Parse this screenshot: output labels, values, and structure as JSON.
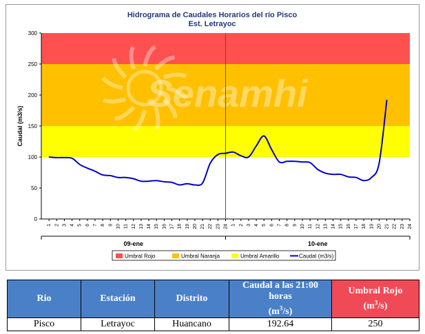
{
  "chart_data": {
    "type": "line",
    "title": "Hidrograma de Caudales Horarios del río Pisco",
    "subtitle": "Est. Letrayoc",
    "ylabel": "Caudal  (m3/s)",
    "ylim": [
      0,
      300
    ],
    "yticks": [
      0,
      50,
      100,
      150,
      200,
      250,
      300
    ],
    "x_tick_labels": [
      "1",
      "2",
      "3",
      "4",
      "5",
      "6",
      "7",
      "8",
      "9",
      "10",
      "11",
      "12",
      "13",
      "14",
      "15",
      "16",
      "17",
      "18",
      "19",
      "20",
      "21",
      "22",
      "23",
      "24",
      "1",
      "2",
      "3",
      "4",
      "5",
      "6",
      "7",
      "8",
      "9",
      "10",
      "11",
      "12",
      "13",
      "14",
      "15",
      "16",
      "17",
      "18",
      "19",
      "20",
      "21",
      "22",
      "23",
      "24"
    ],
    "days": [
      "09-ene",
      "10-ene"
    ],
    "thresholds": [
      {
        "name": "Umbral Rojo",
        "from": 250,
        "to": 300,
        "color": "#ff5050"
      },
      {
        "name": "Umbral Naranja",
        "from": 150,
        "to": 250,
        "color": "#ffc000"
      },
      {
        "name": "Umbral Amarillo",
        "from": 100,
        "to": 150,
        "color": "#ffff00"
      }
    ],
    "series": [
      {
        "name": "Caudal (m3/s)",
        "color": "#0000cc",
        "x": [
          1,
          2,
          3,
          4,
          5,
          6,
          7,
          8,
          9,
          10,
          11,
          12,
          13,
          14,
          15,
          16,
          17,
          18,
          19,
          20,
          21,
          22,
          23,
          24,
          25,
          26,
          27,
          28,
          29,
          30,
          31,
          32,
          33,
          34,
          35,
          36,
          37,
          38,
          39,
          40,
          41,
          42,
          43,
          44,
          45
        ],
        "values": [
          100,
          99,
          99,
          98,
          88,
          82,
          77,
          71,
          70,
          67,
          67,
          65,
          61,
          61,
          62,
          60,
          59,
          55,
          57,
          55,
          58,
          90,
          104,
          106,
          108,
          102,
          100,
          118,
          134,
          112,
          92,
          93,
          93,
          92,
          91,
          80,
          74,
          72,
          72,
          68,
          67,
          62,
          67,
          90,
          192
        ]
      }
    ],
    "legend_position": "bottom",
    "watermark": "Senamhi"
  },
  "table": {
    "headers": [
      "Rio",
      "Estación",
      "Distrito",
      "Caudal a las 21:00 horas",
      "Umbral Rojo"
    ],
    "units": [
      "",
      "",
      "",
      "(m3/s)",
      "(m3/s)"
    ],
    "row": [
      "Pisco",
      "Letrayoc",
      "Huancano",
      "192.64",
      "250"
    ]
  }
}
